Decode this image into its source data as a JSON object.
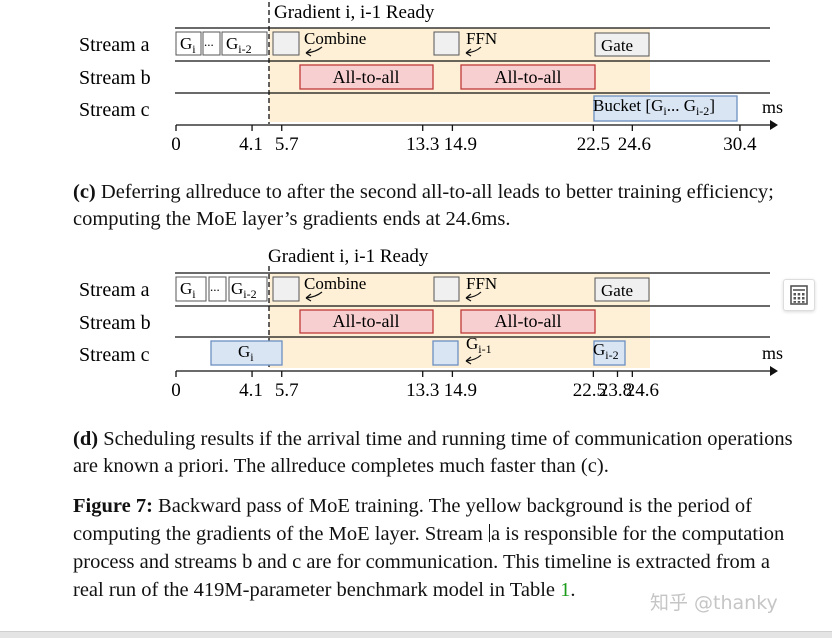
{
  "panel_c": {
    "top_label": "Gradient i, i-1 Ready",
    "streams": [
      "Stream a",
      "Stream b",
      "Stream c"
    ],
    "boxes": {
      "stream_a_first": "G",
      "stream_a_first_sub": "i",
      "stream_a_dots": "...",
      "stream_a_last": "G",
      "stream_a_last_sub": "i-2",
      "combine": "Combine",
      "ffn": "FFN",
      "gate": "Gate",
      "all_to_all_1": "All-to-all",
      "all_to_all_2": "All-to-all",
      "bucket": "Bucket [G",
      "bucket_sub1": "i",
      "bucket_mid": "... G",
      "bucket_sub2": "i-2",
      "bucket_end": "]"
    },
    "unit": "ms",
    "ticks": [
      "0",
      "4.1",
      "5.7",
      "13.3",
      "14.9",
      "22.5",
      "24.6",
      "30.4"
    ]
  },
  "caption_c": {
    "label": "(c)",
    "text": "Deferring allreduce to after the second all-to-all leads to better training efficiency; computing the MoE layer’s gradients ends at 24.6ms."
  },
  "panel_d": {
    "top_label": "Gradient i, i-1 Ready",
    "streams": [
      "Stream a",
      "Stream b",
      "Stream c"
    ],
    "boxes": {
      "stream_a_first": "G",
      "stream_a_first_sub": "i",
      "stream_a_dots": "...",
      "stream_a_last": "G",
      "stream_a_last_sub": "i-2",
      "combine": "Combine",
      "ffn": "FFN",
      "gate": "Gate",
      "all_to_all_1": "All-to-all",
      "all_to_all_2": "All-to-all",
      "gi": "G",
      "gi_sub": "i",
      "gi1": "G",
      "gi1_sub": "i-1",
      "gi2": "G",
      "gi2_sub": "i-2"
    },
    "unit": "ms",
    "ticks": [
      "0",
      "4.1",
      "5.7",
      "13.3",
      "14.9",
      "22.5",
      "23.8",
      "24.6"
    ]
  },
  "caption_d": {
    "label": "(d)",
    "text": "Scheduling results if the arrival time and running time of communication operations are known a priori. The allreduce completes much faster than (c)."
  },
  "figure_caption": {
    "label": "Figure 7:",
    "text_1": "Backward pass of MoE training. The yellow background is the period of computing the gradients of the MoE layer. Stream ",
    "text_2": "a is responsible for the computation process and streams b and c are for communication. This timeline is extracted from a real run of the 419M-parameter benchmark model in Table ",
    "ref": "1",
    "end": "."
  },
  "watermark": "知乎 @thanky",
  "icons": {
    "calculator": "calculator-icon"
  },
  "colors": {
    "yellow_bg": "#fdf0d6",
    "red_box_fill": "#f7cfd0",
    "red_box_stroke": "#c0393b",
    "blue_box_fill": "#d9e5f3",
    "blue_box_stroke": "#6c8fc0",
    "gray_box_fill": "#f0f0f0",
    "link_green": "#1a9b1a"
  }
}
